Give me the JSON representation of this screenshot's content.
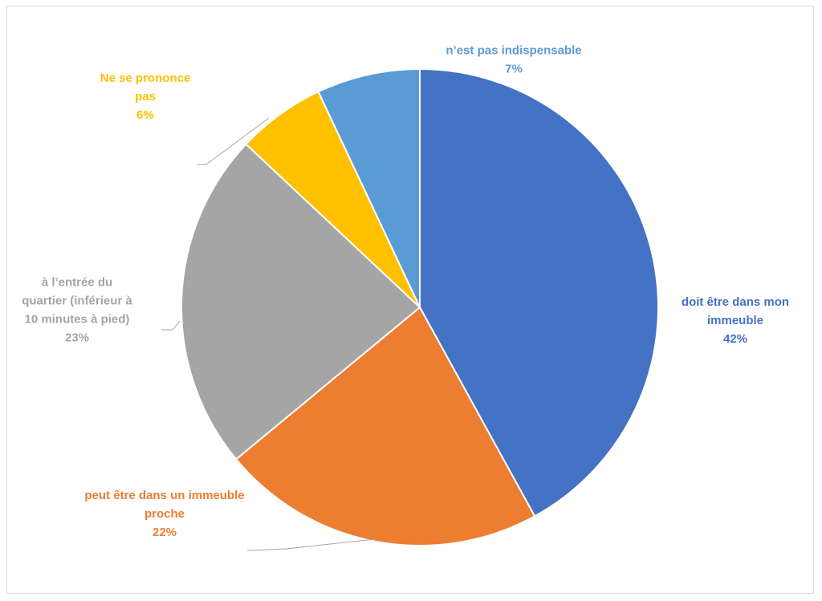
{
  "chart_data": {
    "type": "pie",
    "title": "",
    "categories": [
      "doit être dans mon immeuble",
      "peut être dans un immeuble proche",
      "à l’entrée du quartier (inférieur à 10 minutes à pied)",
      "Ne se prononce pas",
      "n’est pas indispensable"
    ],
    "values": [
      42,
      22,
      23,
      6,
      7
    ],
    "colors": [
      "#4472C4",
      "#ED7D31",
      "#A5A5A5",
      "#FFC000",
      "#5B9BD5"
    ],
    "labels": [
      {
        "lines": [
          "doit être dans mon",
          "immeuble"
        ],
        "percent": "42%"
      },
      {
        "lines": [
          "peut être dans un immeuble",
          "proche"
        ],
        "percent": "22%"
      },
      {
        "lines": [
          "à l’entrée du",
          "quartier (inférieur à",
          "10 minutes à pied)"
        ],
        "percent": "23%"
      },
      {
        "lines": [
          "Ne se prononce",
          "pas"
        ],
        "percent": "6%"
      },
      {
        "lines": [
          "n’est pas indispensable"
        ],
        "percent": "7%"
      }
    ],
    "legend": "none",
    "start_angle": "12 o'clock",
    "direction": "clockwise"
  }
}
